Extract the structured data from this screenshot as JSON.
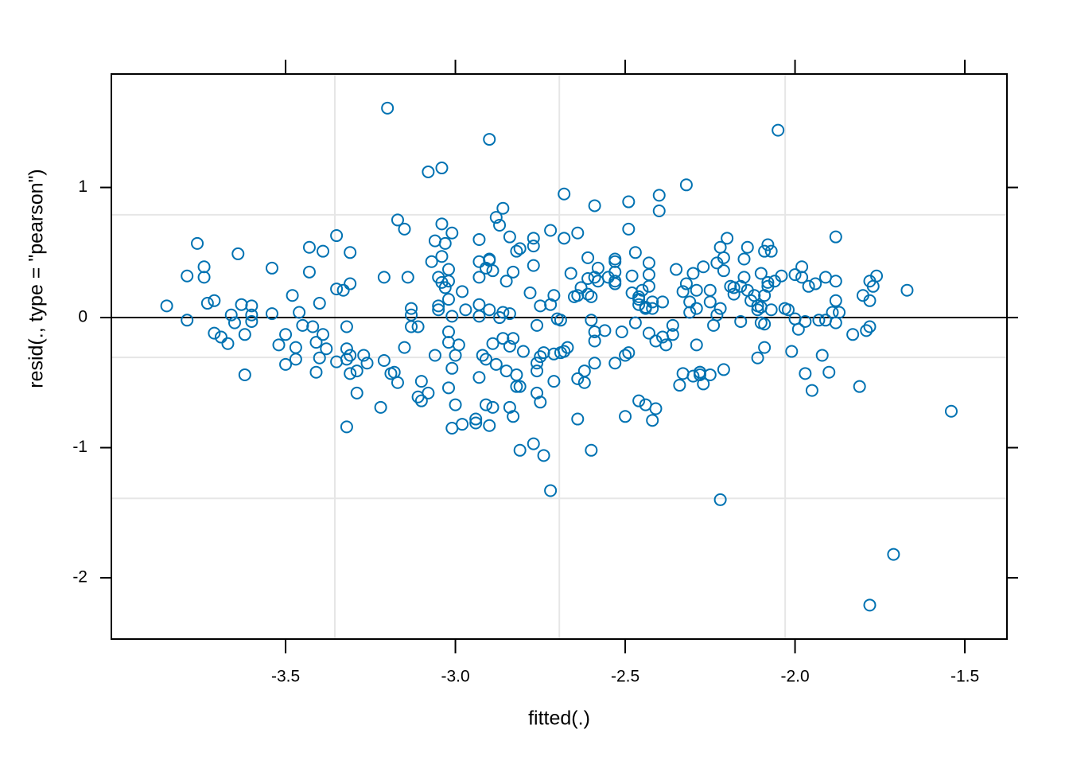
{
  "chart_data": {
    "type": "scatter",
    "xlabel": "fitted(.)",
    "ylabel": "resid(., type = \"pearson\")",
    "color": "#0072b2",
    "xlim": [
      -4.013,
      -1.376
    ],
    "ylim": [
      -2.471,
      1.872
    ],
    "xticks": [
      -3.5,
      {
        "value": -3,
        "label": "-3.0"
      },
      -2.5,
      {
        "value": -2,
        "label": "-2.0"
      },
      -1.5
    ],
    "yticks": [
      -2,
      -1,
      0,
      1
    ],
    "grid_x": [
      -3.355,
      -2.694,
      -2.029
    ],
    "grid_y": [
      0.79,
      -0.306,
      -1.39
    ],
    "hline": 0,
    "x": [
      -3.85,
      -3.79,
      -3.79,
      -3.76,
      -3.74,
      -3.74,
      -3.73,
      -3.71,
      -3.71,
      -3.69,
      -3.67,
      -3.66,
      -3.65,
      -3.64,
      -3.63,
      -3.62,
      -3.62,
      -3.6,
      -3.6,
      -3.6,
      -3.54,
      -3.54,
      -3.52,
      -3.5,
      -3.5,
      -3.48,
      -3.47,
      -3.47,
      -3.46,
      -3.45,
      -3.43,
      -3.43,
      -3.42,
      -3.41,
      -3.41,
      -3.4,
      -3.4,
      -3.39,
      -3.39,
      -3.38,
      -3.35,
      -3.35,
      -3.35,
      -3.33,
      -3.32,
      -3.32,
      -3.32,
      -3.32,
      -3.31,
      -3.31,
      -3.31,
      -3.31,
      -3.29,
      -3.29,
      -3.27,
      -3.26,
      -3.22,
      -3.21,
      -3.2,
      -3.21,
      -3.19,
      -3.18,
      -3.17,
      -3.17,
      -3.15,
      -3.15,
      -3.14,
      -3.13,
      -3.13,
      -3.13,
      -3.11,
      -3.1,
      -3.11,
      -3.1,
      -3.08,
      -3.08,
      -3.07,
      -3.06,
      -3.06,
      -3.05,
      -3.05,
      -3.05,
      -3.04,
      -3.04,
      -3.04,
      -3.04,
      -3.03,
      -3.03,
      -3.02,
      -3.02,
      -3.02,
      -3.02,
      -3.02,
      -3.02,
      -3.01,
      -3.01,
      -3.01,
      -3.01,
      -3.0,
      -3.0,
      -2.99,
      -2.98,
      -2.97,
      -2.98,
      -2.94,
      -2.94,
      -2.93,
      -2.93,
      -2.93,
      -2.93,
      -2.93,
      -2.93,
      -2.92,
      -2.91,
      -2.91,
      -2.91,
      -2.9,
      -2.9,
      -2.9,
      -2.9,
      -2.9,
      -2.89,
      -2.89,
      -2.89,
      -2.88,
      -2.88,
      -2.87,
      -2.87,
      -2.86,
      -2.86,
      -2.86,
      -2.85,
      -2.85,
      -2.84,
      -2.84,
      -2.84,
      -2.84,
      -2.83,
      -2.83,
      -2.83,
      -2.82,
      -2.82,
      -2.82,
      -2.81,
      -2.81,
      -2.81,
      -2.8,
      -2.78,
      -2.77,
      -2.77,
      -2.77,
      -2.77,
      -2.76,
      -2.76,
      -2.76,
      -2.76,
      -2.75,
      -2.75,
      -2.75,
      -2.74,
      -2.74,
      -2.72,
      -2.72,
      -2.72,
      -2.71,
      -2.71,
      -2.71,
      -2.7,
      -2.69,
      -2.69,
      -2.68,
      -2.68,
      -2.68,
      -2.67,
      -2.66,
      -2.65,
      -2.64,
      -2.64,
      -2.64,
      -2.64,
      -2.62,
      -2.62,
      -2.61,
      -2.63,
      -2.61,
      -2.61,
      -2.6,
      -2.6,
      -2.6,
      -2.59,
      -2.59,
      -2.59,
      -2.59,
      -2.59,
      -2.58,
      -2.58,
      -2.56,
      -2.55,
      -2.53,
      -2.53,
      -2.53,
      -2.53,
      -2.53,
      -2.53,
      -2.51,
      -2.5,
      -2.5,
      -2.49,
      -2.49,
      -2.49,
      -2.48,
      -2.48,
      -2.47,
      -2.47,
      -2.46,
      -2.46,
      -2.46,
      -2.46,
      -2.45,
      -2.44,
      -2.44,
      -2.44,
      -2.43,
      -2.43,
      -2.43,
      -2.43,
      -2.42,
      -2.42,
      -2.42,
      -2.41,
      -2.41,
      -2.4,
      -2.4,
      -2.39,
      -2.39,
      -2.38,
      -2.36,
      -2.36,
      -2.35,
      -2.34,
      -2.33,
      -2.33,
      -2.32,
      -2.32,
      -2.31,
      -2.31,
      -2.3,
      -2.3,
      -2.29,
      -2.29,
      -2.29,
      -2.28,
      -2.28,
      -2.28,
      -2.27,
      -2.27,
      -2.25,
      -2.25,
      -2.25,
      -2.24,
      -2.23,
      -2.23,
      -2.22,
      -2.22,
      -2.22,
      -2.21,
      -2.21,
      -2.21,
      -2.2,
      -2.19,
      -2.18,
      -2.18,
      -2.16,
      -2.16,
      -2.15,
      -2.15,
      -2.14,
      -2.14,
      -2.13,
      -2.12,
      -2.11,
      -2.11,
      -2.11,
      -2.1,
      -2.1,
      -2.1,
      -2.09,
      -2.09,
      -2.09,
      -2.09,
      -2.08,
      -2.08,
      -2.08,
      -2.07,
      -2.07,
      -2.06,
      -2.05,
      -2.04,
      -2.03,
      -2.02,
      -2.01,
      -2.0,
      -2.0,
      -1.99,
      -1.98,
      -1.98,
      -1.97,
      -1.97,
      -1.96,
      -1.95,
      -1.94,
      -1.93,
      -1.92,
      -1.91,
      -1.91,
      -1.9,
      -1.89,
      -1.88,
      -1.88,
      -1.88,
      -1.88,
      -1.87,
      -1.83,
      -1.81,
      -1.8,
      -1.79,
      -1.78,
      -1.78,
      -1.78,
      -1.78,
      -1.77,
      -1.76,
      -1.71,
      -1.67,
      -1.54
    ],
    "values": [
      0.09,
      -0.02,
      0.32,
      0.57,
      0.39,
      0.31,
      0.11,
      0.13,
      -0.12,
      -0.15,
      -0.2,
      0.02,
      -0.04,
      0.49,
      0.1,
      -0.13,
      -0.44,
      0.02,
      0.09,
      -0.03,
      0.38,
      0.03,
      -0.21,
      -0.13,
      -0.36,
      0.17,
      -0.32,
      -0.23,
      0.04,
      -0.06,
      0.54,
      0.35,
      -0.07,
      -0.19,
      -0.42,
      0.11,
      -0.31,
      0.51,
      -0.13,
      -0.24,
      0.63,
      0.22,
      -0.34,
      0.21,
      -0.07,
      -0.24,
      -0.84,
      -0.32,
      -0.43,
      0.5,
      0.26,
      -0.29,
      -0.58,
      -0.41,
      -0.29,
      -0.35,
      -0.69,
      0.31,
      1.61,
      -0.33,
      -0.43,
      -0.42,
      0.75,
      -0.5,
      0.68,
      -0.23,
      0.31,
      0.07,
      0.02,
      -0.07,
      -0.07,
      -0.49,
      -0.61,
      -0.64,
      1.12,
      -0.58,
      0.43,
      -0.29,
      0.59,
      0.09,
      0.06,
      0.31,
      1.15,
      0.72,
      0.27,
      0.47,
      0.57,
      0.23,
      0.28,
      -0.11,
      -0.19,
      -0.54,
      0.37,
      0.14,
      -0.85,
      0.65,
      -0.39,
      0.01,
      -0.29,
      -0.67,
      -0.21,
      0.2,
      0.06,
      -0.82,
      -0.81,
      -0.78,
      0.6,
      0.31,
      -0.46,
      0.43,
      0.1,
      0.01,
      -0.29,
      0.38,
      -0.67,
      -0.32,
      -0.83,
      0.45,
      1.37,
      0.06,
      0.44,
      0.36,
      -0.2,
      -0.69,
      -0.36,
      0.77,
      0.71,
      0.0,
      0.04,
      -0.16,
      0.84,
      -0.41,
      0.28,
      -0.22,
      0.03,
      -0.69,
      0.62,
      -0.16,
      0.35,
      -0.76,
      -0.53,
      -0.44,
      0.51,
      -0.53,
      0.53,
      -1.02,
      -0.26,
      0.19,
      0.61,
      0.4,
      0.55,
      -0.97,
      -0.58,
      -0.35,
      -0.06,
      -0.41,
      0.09,
      -0.65,
      -0.3,
      -1.06,
      -0.27,
      -1.33,
      0.1,
      0.67,
      0.17,
      -0.28,
      -0.49,
      -0.01,
      -0.27,
      -0.02,
      -0.26,
      0.61,
      0.95,
      -0.23,
      0.34,
      0.16,
      0.17,
      0.65,
      -0.47,
      -0.78,
      -0.41,
      -0.5,
      0.46,
      0.23,
      0.18,
      0.3,
      -1.02,
      -0.02,
      0.16,
      0.86,
      -0.35,
      -0.11,
      -0.18,
      0.31,
      0.38,
      0.28,
      -0.1,
      0.31,
      -0.35,
      0.45,
      0.26,
      0.43,
      0.35,
      0.28,
      -0.11,
      -0.76,
      -0.29,
      0.89,
      0.68,
      -0.27,
      0.19,
      0.32,
      -0.04,
      0.5,
      0.1,
      -0.64,
      0.16,
      0.14,
      0.21,
      0.07,
      0.08,
      -0.67,
      0.24,
      0.33,
      -0.12,
      0.42,
      0.12,
      0.07,
      -0.79,
      -0.7,
      -0.18,
      0.94,
      0.82,
      -0.15,
      0.12,
      -0.21,
      -0.13,
      -0.06,
      0.37,
      -0.52,
      -0.43,
      0.2,
      1.02,
      0.26,
      0.04,
      0.12,
      -0.45,
      0.34,
      0.21,
      0.07,
      -0.21,
      -0.42,
      -0.44,
      -0.42,
      0.39,
      -0.51,
      -0.44,
      0.21,
      0.12,
      -0.06,
      0.02,
      0.42,
      0.07,
      -1.4,
      0.54,
      -0.4,
      0.46,
      0.36,
      0.61,
      0.24,
      0.23,
      0.18,
      0.24,
      -0.03,
      0.45,
      0.31,
      0.54,
      0.21,
      0.13,
      0.17,
      0.06,
      0.09,
      -0.31,
      0.34,
      -0.04,
      0.08,
      0.51,
      -0.05,
      -0.23,
      0.17,
      0.24,
      0.56,
      0.27,
      0.51,
      0.06,
      0.28,
      1.44,
      0.32,
      0.07,
      0.06,
      -0.26,
      0.33,
      -0.01,
      -0.09,
      0.39,
      0.31,
      -0.03,
      -0.43,
      0.24,
      -0.56,
      0.26,
      -0.02,
      -0.29,
      0.31,
      -0.02,
      -0.42,
      0.04,
      0.62,
      0.13,
      0.28,
      -0.04,
      0.04,
      -0.13,
      -0.53,
      0.17,
      -0.1,
      -2.21,
      -0.07,
      0.28,
      0.13,
      0.24,
      0.32,
      -1.82,
      0.21,
      -0.72
    ]
  }
}
